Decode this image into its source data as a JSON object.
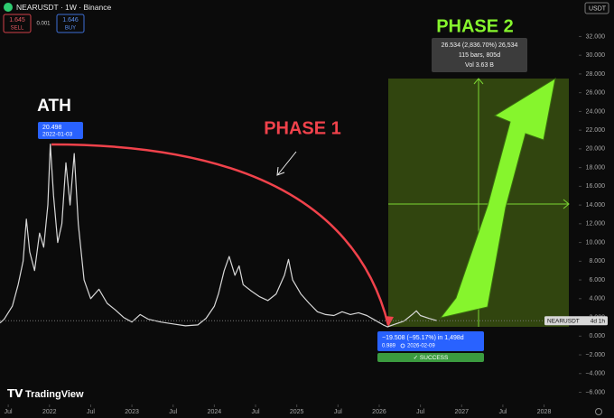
{
  "chart_data": {
    "type": "line",
    "title": "NEARUSDT · 1W · Binance",
    "currency": "USDT",
    "quote": {
      "sell": "1.645",
      "sell_label": "SELL",
      "spread": "0.001",
      "buy": "1.646",
      "buy_label": "BUY"
    },
    "x": [
      2021.4,
      2021.45,
      2021.55,
      2021.62,
      2021.68,
      2021.72,
      2021.76,
      2021.82,
      2021.88,
      2021.93,
      2021.98,
      2022.01,
      2022.05,
      2022.1,
      2022.15,
      2022.2,
      2022.25,
      2022.3,
      2022.35,
      2022.42,
      2022.5,
      2022.6,
      2022.7,
      2022.8,
      2022.9,
      2023.0,
      2023.1,
      2023.2,
      2023.35,
      2023.5,
      2023.65,
      2023.8,
      2023.9,
      2024.0,
      2024.05,
      2024.12,
      2024.18,
      2024.25,
      2024.3,
      2024.35,
      2024.45,
      2024.55,
      2024.65,
      2024.75,
      2024.85,
      2024.9,
      2024.95,
      2025.05,
      2025.15,
      2025.25,
      2025.35,
      2025.45,
      2025.55,
      2025.65,
      2025.75,
      2025.85,
      2025.95,
      2026.05,
      2026.1,
      2026.2,
      2026.3,
      2026.4,
      2026.45,
      2026.5,
      2026.6,
      2026.7
    ],
    "series": [
      {
        "name": "NEARUSDT",
        "color": "#d8d8d8",
        "values": [
          1.4,
          1.8,
          3.2,
          5.5,
          8,
          12.5,
          9,
          7,
          11,
          9.5,
          14,
          20.5,
          15,
          10,
          12,
          18.5,
          14,
          19.5,
          12,
          6,
          4,
          5,
          3.5,
          2.8,
          2,
          1.5,
          2.3,
          1.8,
          1.5,
          1.3,
          1.1,
          1.2,
          1.9,
          3.2,
          4.5,
          7,
          8.5,
          6.5,
          7.5,
          5.5,
          4.8,
          4.2,
          3.8,
          4.5,
          6.5,
          8.2,
          6,
          4.5,
          3.5,
          2.6,
          2.3,
          2.2,
          2.6,
          2.3,
          2.5,
          2.2,
          1.7,
          1.2,
          0.99,
          1.3,
          1.6,
          2.3,
          2.7,
          2.2,
          1.9,
          1.645
        ]
      }
    ],
    "last_label": "4d 1h",
    "xlim": [
      2021.4,
      2028.41
    ],
    "xticks": [
      {
        "value": 2021.5,
        "label": "Jul"
      },
      2022,
      {
        "value": 2022.5,
        "label": "Jul"
      },
      2023,
      {
        "value": 2023.5,
        "label": "Jul"
      },
      2024,
      {
        "value": 2024.5,
        "label": "Jul"
      },
      2025,
      {
        "value": 2025.5,
        "label": "Jul"
      },
      2026,
      {
        "value": 2026.5,
        "label": "Jul"
      },
      2027,
      {
        "value": 2027.5,
        "label": "Jul"
      },
      2028
    ],
    "ylim": [
      -7.3,
      35.9
    ],
    "yticks": [
      {
        "value": 32,
        "label": "32.000"
      },
      {
        "value": 30,
        "label": "30.000"
      },
      {
        "value": 28,
        "label": "28.000"
      },
      {
        "value": 26,
        "label": "26.000"
      },
      {
        "value": 24,
        "label": "24.000"
      },
      {
        "value": 22,
        "label": "22.000"
      },
      {
        "value": 20,
        "label": "20.000"
      },
      {
        "value": 18,
        "label": "18.000"
      },
      {
        "value": 16,
        "label": "16.000"
      },
      {
        "value": 14,
        "label": "14.000"
      },
      {
        "value": 12,
        "label": "12.000"
      },
      {
        "value": 10,
        "label": "10.000"
      },
      {
        "value": 8,
        "label": "8.000"
      },
      {
        "value": 6,
        "label": "6.000"
      },
      {
        "value": 4,
        "label": "4.000"
      },
      {
        "value": 2,
        "label": "2.000"
      },
      {
        "value": 0,
        "label": "0.000"
      },
      {
        "value": -2,
        "label": "−2.000"
      },
      {
        "value": -4,
        "label": "−4.000"
      },
      {
        "value": -6,
        "label": "−6.000"
      }
    ],
    "grid": false,
    "annotations": {
      "ath_label": "ATH",
      "ath_price": "20.498",
      "ath_date": "2022-01-03",
      "phase1": "PHASE 1",
      "phase2": "PHASE 2",
      "measure": [
        "26.534 (2,836.70%) 26,534",
        "115 bars, 805d",
        "Vol 3.63 B"
      ],
      "drop": [
        "−19.508 (−95.17%) in 1,498d",
        "0.989",
        "2026-02-09"
      ],
      "success": "✓ SUCCESS"
    },
    "logo": "TradingView"
  }
}
